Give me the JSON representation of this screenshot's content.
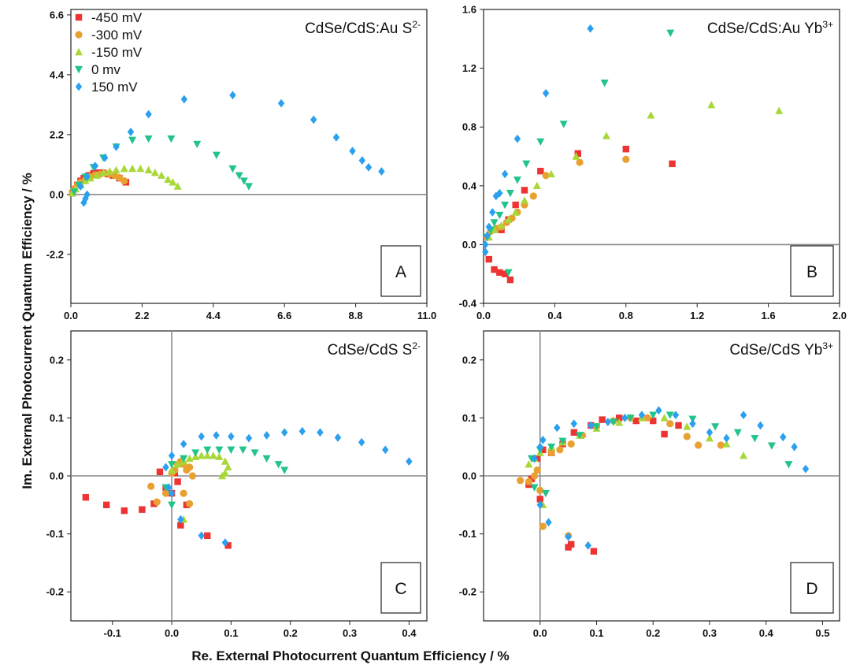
{
  "figure": {
    "xlabel": "Re. External Photocurrent Quantum Efficiency / %",
    "ylabel": "Im. External Photocurrent Quantum Efficiency / %"
  },
  "legend": [
    {
      "label": "-450 mV",
      "color": "#ee3333",
      "marker": "square"
    },
    {
      "label": "-300 mV",
      "color": "#e8a030",
      "marker": "circle"
    },
    {
      "label": "-150 mV",
      "color": "#a8d838",
      "marker": "triangle-up"
    },
    {
      "label": "0 mv",
      "color": "#22c48a",
      "marker": "triangle-down"
    },
    {
      "label": "150 mV",
      "color": "#2aa0ee",
      "marker": "diamond"
    }
  ],
  "chart_data": [
    {
      "id": "A",
      "type": "scatter",
      "title_main": "CdSe/CdS:Au S",
      "title_sup": "2-",
      "letter": "A",
      "xlim": [
        0,
        11
      ],
      "ylim": [
        -4.0,
        6.8
      ],
      "xticks": [
        "0.0",
        "2.2",
        "4.4",
        "6.6",
        "8.8",
        "11.0"
      ],
      "xtick_values": [
        0,
        2.2,
        4.4,
        6.6,
        8.8,
        11.0
      ],
      "yticks": [
        "-2.2",
        "0.0",
        "2.2",
        "4.4",
        "6.6"
      ],
      "ytick_values": [
        -2.2,
        0,
        2.2,
        4.4,
        6.6
      ],
      "zero_lines": {
        "x": false,
        "y": true
      },
      "series": [
        {
          "name": "-450 mV",
          "x": [
            0.05,
            0.1,
            0.2,
            0.3,
            0.4,
            0.55,
            0.7,
            0.85,
            1.0,
            1.15,
            1.3,
            1.5,
            1.7
          ],
          "y": [
            0.05,
            0.2,
            0.35,
            0.5,
            0.6,
            0.7,
            0.78,
            0.8,
            0.8,
            0.75,
            0.7,
            0.6,
            0.45
          ]
        },
        {
          "name": "-300 mV",
          "x": [
            0.05,
            0.1,
            0.2,
            0.3,
            0.45,
            0.6,
            0.75,
            0.9,
            1.05,
            1.2,
            1.35,
            1.5,
            1.65
          ],
          "y": [
            0.05,
            0.2,
            0.35,
            0.45,
            0.55,
            0.65,
            0.72,
            0.75,
            0.78,
            0.76,
            0.7,
            0.62,
            0.5
          ]
        },
        {
          "name": "-150 mV",
          "x": [
            0.05,
            0.15,
            0.3,
            0.45,
            0.6,
            0.8,
            1.0,
            1.2,
            1.4,
            1.65,
            1.9,
            2.15,
            2.4,
            2.6,
            2.8,
            3.0,
            3.15,
            3.3
          ],
          "y": [
            0.05,
            0.2,
            0.35,
            0.5,
            0.6,
            0.7,
            0.8,
            0.85,
            0.9,
            0.95,
            0.95,
            0.95,
            0.9,
            0.8,
            0.7,
            0.55,
            0.45,
            0.3
          ]
        },
        {
          "name": "0 mv",
          "x": [
            0.1,
            0.25,
            0.45,
            0.7,
            1.0,
            1.4,
            1.9,
            2.4,
            3.1,
            3.9,
            4.5,
            5.0,
            5.2,
            5.35,
            5.5
          ],
          "y": [
            0.1,
            0.35,
            0.65,
            1.0,
            1.35,
            1.75,
            2.0,
            2.05,
            2.05,
            1.85,
            1.45,
            0.95,
            0.7,
            0.5,
            0.3
          ]
        },
        {
          "name": "150 mV",
          "x": [
            0.4,
            0.45,
            0.5,
            0.3,
            0.5,
            0.75,
            1.05,
            1.4,
            1.85,
            2.4,
            3.5,
            5.0,
            6.5,
            7.5,
            8.2,
            8.7,
            9.0,
            9.2,
            9.6
          ],
          "y": [
            -0.3,
            -0.15,
            0.0,
            0.3,
            0.65,
            1.05,
            1.35,
            1.75,
            2.3,
            2.95,
            3.5,
            3.65,
            3.35,
            2.75,
            2.1,
            1.6,
            1.25,
            1.0,
            0.85
          ]
        }
      ]
    },
    {
      "id": "B",
      "type": "scatter",
      "title_main": "CdSe/CdS:Au Yb",
      "title_sup": "3+",
      "letter": "B",
      "xlim": [
        0,
        2.0
      ],
      "ylim": [
        -0.4,
        1.6
      ],
      "xticks": [
        "0.0",
        "0.4",
        "0.8",
        "1.2",
        "1.6",
        "2.0"
      ],
      "xtick_values": [
        0,
        0.4,
        0.8,
        1.2,
        1.6,
        2.0
      ],
      "yticks": [
        "-0.4",
        "0.0",
        "0.4",
        "0.8",
        "1.2",
        "1.6"
      ],
      "ytick_values": [
        -0.4,
        0,
        0.4,
        0.8,
        1.2,
        1.6
      ],
      "zero_lines": {
        "x": false,
        "y": true
      },
      "series": [
        {
          "name": "-450 mV",
          "x": [
            0.03,
            0.06,
            0.09,
            0.12,
            0.15,
            0.1,
            0.14,
            0.18,
            0.23,
            0.32,
            0.53,
            0.8,
            1.06
          ],
          "y": [
            -0.1,
            -0.17,
            -0.19,
            -0.2,
            -0.24,
            0.1,
            0.17,
            0.27,
            0.37,
            0.5,
            0.62,
            0.65,
            0.55
          ]
        },
        {
          "name": "-300 mV",
          "x": [
            0.02,
            0.04,
            0.07,
            0.1,
            0.13,
            0.16,
            0.19,
            0.23,
            0.28,
            0.35,
            0.54,
            0.8
          ],
          "y": [
            0.05,
            0.09,
            0.11,
            0.12,
            0.15,
            0.18,
            0.22,
            0.27,
            0.33,
            0.47,
            0.56,
            0.58
          ]
        },
        {
          "name": "-150 mV",
          "x": [
            0.03,
            0.06,
            0.1,
            0.14,
            0.18,
            0.23,
            0.3,
            0.38,
            0.52,
            0.69,
            0.94,
            1.28,
            1.66
          ],
          "y": [
            0.05,
            0.1,
            0.13,
            0.17,
            0.22,
            0.3,
            0.4,
            0.48,
            0.6,
            0.74,
            0.88,
            0.95,
            0.91
          ]
        },
        {
          "name": "0 mv",
          "x": [
            0.02,
            0.04,
            0.06,
            0.09,
            0.12,
            0.15,
            0.19,
            0.24,
            0.32,
            0.45,
            0.68,
            1.05,
            0.14
          ],
          "y": [
            0.05,
            0.1,
            0.15,
            0.2,
            0.27,
            0.35,
            0.44,
            0.55,
            0.7,
            0.82,
            1.1,
            1.44,
            -0.19
          ]
        },
        {
          "name": "150 mV",
          "x": [
            0.01,
            0.01,
            0.02,
            0.03,
            0.05,
            0.07,
            0.09,
            0.12,
            0.19,
            0.35,
            0.6
          ],
          "y": [
            -0.05,
            0.0,
            0.06,
            0.12,
            0.22,
            0.33,
            0.35,
            0.48,
            0.72,
            1.03,
            1.47
          ]
        }
      ]
    },
    {
      "id": "C",
      "type": "scatter",
      "title_main": "CdSe/CdS S",
      "title_sup": "2-",
      "letter": "C",
      "xlim": [
        -0.17,
        0.43
      ],
      "ylim": [
        -0.25,
        0.25
      ],
      "xticks": [
        "-0.1",
        "0.0",
        "0.1",
        "0.2",
        "0.3",
        "0.4"
      ],
      "xtick_values": [
        -0.1,
        0,
        0.1,
        0.2,
        0.3,
        0.4
      ],
      "yticks": [
        "-0.2",
        "-0.1",
        "0.0",
        "0.1",
        "0.2"
      ],
      "ytick_values": [
        -0.2,
        -0.1,
        0,
        0.1,
        0.2
      ],
      "zero_lines": {
        "x": true,
        "y": true
      },
      "series": [
        {
          "name": "-450 mV",
          "x": [
            -0.145,
            -0.11,
            -0.08,
            -0.05,
            -0.02,
            -0.03,
            -0.01,
            0.0,
            0.01,
            0.005,
            0.015,
            0.025,
            0.06,
            0.095
          ],
          "y": [
            -0.037,
            -0.05,
            -0.06,
            -0.058,
            0.007,
            -0.048,
            -0.02,
            -0.03,
            -0.01,
            0.005,
            -0.085,
            -0.05,
            -0.103,
            -0.12
          ]
        },
        {
          "name": "-300 mV",
          "x": [
            -0.035,
            -0.025,
            -0.01,
            0.0,
            0.005,
            0.01,
            0.015,
            0.02,
            0.025,
            0.03,
            0.035,
            0.03,
            0.02
          ],
          "y": [
            -0.018,
            -0.045,
            -0.03,
            0.005,
            0.01,
            0.02,
            0.025,
            0.02,
            0.01,
            0.015,
            0.0,
            -0.048,
            -0.03
          ]
        },
        {
          "name": "-150 mV",
          "x": [
            0.0,
            0.01,
            0.02,
            0.03,
            0.04,
            0.05,
            0.06,
            0.07,
            0.08,
            0.09,
            0.095,
            0.09,
            0.085,
            0.02
          ],
          "y": [
            0.01,
            0.02,
            0.025,
            0.03,
            0.033,
            0.035,
            0.035,
            0.035,
            0.033,
            0.025,
            0.015,
            0.005,
            0.0,
            -0.075
          ]
        },
        {
          "name": "0 mv",
          "x": [
            0.0,
            0.02,
            0.04,
            0.06,
            0.08,
            0.1,
            0.12,
            0.14,
            0.16,
            0.18,
            0.19,
            -0.01,
            0.0
          ],
          "y": [
            0.02,
            0.03,
            0.04,
            0.045,
            0.045,
            0.045,
            0.045,
            0.04,
            0.03,
            0.02,
            0.01,
            -0.02,
            -0.05
          ]
        },
        {
          "name": "150 mV",
          "x": [
            -0.01,
            0.0,
            0.02,
            0.05,
            0.075,
            0.1,
            0.13,
            0.16,
            0.19,
            0.22,
            0.25,
            0.28,
            0.32,
            0.36,
            0.4,
            0.015,
            0.05,
            0.09,
            0.0,
            -0.005
          ],
          "y": [
            0.015,
            0.035,
            0.055,
            0.068,
            0.07,
            0.068,
            0.065,
            0.07,
            0.075,
            0.077,
            0.075,
            0.066,
            0.058,
            0.045,
            0.025,
            -0.075,
            -0.103,
            -0.115,
            -0.03,
            -0.02
          ]
        }
      ]
    },
    {
      "id": "D",
      "type": "scatter",
      "title_main": "CdSe/CdS Yb",
      "title_sup": "3+",
      "letter": "D",
      "xlim": [
        -0.1,
        0.53
      ],
      "ylim": [
        -0.25,
        0.25
      ],
      "xticks": [
        "0.0",
        "0.1",
        "0.2",
        "0.3",
        "0.4",
        "0.5"
      ],
      "xtick_values": [
        0,
        0.1,
        0.2,
        0.3,
        0.4,
        0.5
      ],
      "yticks": [
        "-0.2",
        "-0.1",
        "0.0",
        "0.1",
        "0.2"
      ],
      "ytick_values": [
        -0.2,
        -0.1,
        0,
        0.1,
        0.2
      ],
      "zero_lines": {
        "x": true,
        "y": true
      },
      "series": [
        {
          "name": "-450 mV",
          "x": [
            -0.02,
            -0.015,
            -0.005,
            0.0,
            0.005,
            0.02,
            0.04,
            0.06,
            0.09,
            0.11,
            0.14,
            0.17,
            0.2,
            0.22,
            0.245,
            0.05,
            0.055,
            0.095
          ],
          "y": [
            -0.015,
            -0.005,
            0.03,
            -0.04,
            0.045,
            0.04,
            0.055,
            0.075,
            0.087,
            0.097,
            0.1,
            0.095,
            0.095,
            0.072,
            0.087,
            -0.123,
            -0.118,
            -0.13
          ]
        },
        {
          "name": "-300 mV",
          "x": [
            -0.035,
            -0.02,
            -0.01,
            -0.005,
            0.0,
            0.005,
            0.02,
            0.035,
            0.055,
            0.075,
            0.1,
            0.13,
            0.16,
            0.19,
            0.23,
            0.26,
            0.28,
            0.32,
            0.05
          ],
          "y": [
            -0.008,
            -0.01,
            0.0,
            0.01,
            -0.025,
            -0.087,
            0.04,
            0.045,
            0.055,
            0.07,
            0.085,
            0.095,
            0.1,
            0.1,
            0.09,
            0.068,
            0.053,
            0.053,
            -0.103
          ]
        },
        {
          "name": "-150 mV",
          "x": [
            -0.02,
            -0.01,
            0.0,
            0.02,
            0.04,
            0.07,
            0.1,
            0.14,
            0.18,
            0.22,
            0.26,
            0.3,
            0.33,
            0.36,
            0.005
          ],
          "y": [
            0.02,
            0.03,
            0.04,
            0.05,
            0.058,
            0.07,
            0.082,
            0.092,
            0.1,
            0.1,
            0.085,
            0.065,
            0.055,
            0.035,
            -0.05
          ]
        },
        {
          "name": "0 mv",
          "x": [
            -0.015,
            0.0,
            0.02,
            0.04,
            0.07,
            0.1,
            0.13,
            0.16,
            0.2,
            0.23,
            0.27,
            0.31,
            0.35,
            0.38,
            0.41,
            0.44,
            0.01,
            -0.01
          ],
          "y": [
            0.03,
            0.045,
            0.05,
            0.06,
            0.07,
            0.085,
            0.093,
            0.1,
            0.105,
            0.105,
            0.098,
            0.085,
            0.075,
            0.065,
            0.052,
            0.02,
            -0.03,
            -0.02
          ]
        },
        {
          "name": "150 mV",
          "x": [
            -0.01,
            0.0,
            0.005,
            0.03,
            0.06,
            0.09,
            0.12,
            0.15,
            0.18,
            0.21,
            0.24,
            0.27,
            0.3,
            0.33,
            0.36,
            0.39,
            0.43,
            0.45,
            0.47,
            0.015,
            0.05,
            0.085,
            0.0
          ],
          "y": [
            0.03,
            0.05,
            0.062,
            0.083,
            0.09,
            0.087,
            0.093,
            0.1,
            0.105,
            0.113,
            0.105,
            0.09,
            0.075,
            0.065,
            0.105,
            0.087,
            0.067,
            0.05,
            0.012,
            -0.08,
            -0.105,
            -0.12,
            -0.05
          ]
        }
      ]
    }
  ]
}
